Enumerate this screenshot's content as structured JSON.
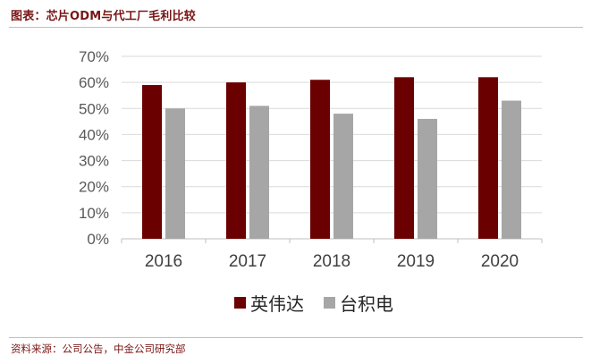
{
  "header": {
    "title": "图表：芯片ODM与代工厂毛利比较"
  },
  "footer": {
    "source": "资料来源：公司公告，中金公司研究部"
  },
  "colors": {
    "series_0": "#6b0000",
    "series_1": "#a6a6a6",
    "grid": "#d9d9d9",
    "title": "#7a1414"
  },
  "chart_data": {
    "type": "bar",
    "categories": [
      "2016",
      "2017",
      "2018",
      "2019",
      "2020"
    ],
    "series": [
      {
        "name": "英伟达",
        "values": [
          0.59,
          0.6,
          0.61,
          0.62,
          0.62
        ]
      },
      {
        "name": "台积电",
        "values": [
          0.5,
          0.51,
          0.48,
          0.46,
          0.53
        ]
      }
    ],
    "ylim": [
      0,
      0.7
    ],
    "yticks": [
      "0%",
      "10%",
      "20%",
      "30%",
      "40%",
      "50%",
      "60%",
      "70%"
    ],
    "grid": true,
    "legend": "bottom",
    "title": "",
    "xlabel": "",
    "ylabel": ""
  }
}
